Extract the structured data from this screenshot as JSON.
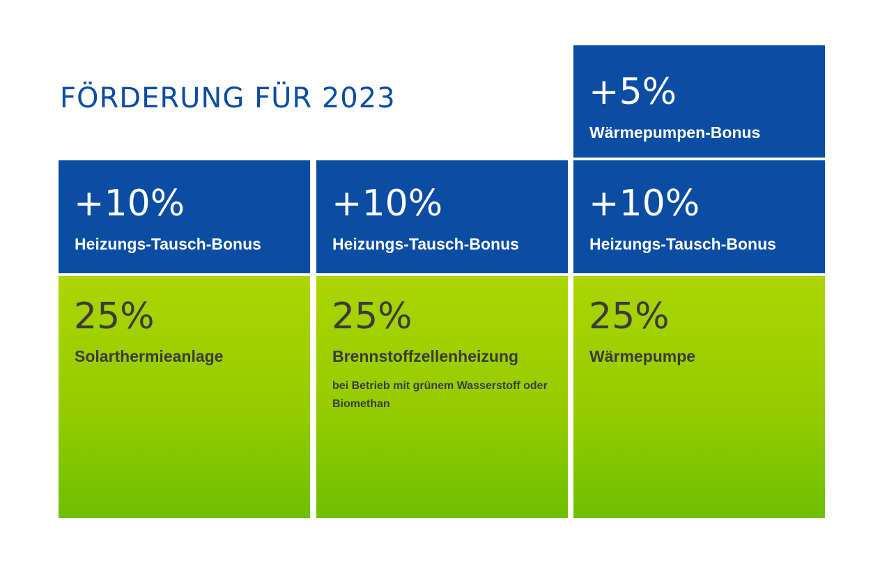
{
  "title": "FÖRDERUNG FÜR 2023",
  "colors": {
    "blue": "#0a4da2",
    "green_top": "#acd503",
    "green_bottom": "#6ebf00",
    "text_dark": "#3b3b3b",
    "background": "#ffffff"
  },
  "columns": [
    {
      "bonus": {
        "percent": "+10%",
        "label": "Heizungs-Tausch-Bonus"
      },
      "base": {
        "percent": "25%",
        "label": "Solarthermieanlage",
        "note": ""
      }
    },
    {
      "bonus": {
        "percent": "+10%",
        "label": "Heizungs-Tausch-Bonus"
      },
      "base": {
        "percent": "25%",
        "label": "Brennstoffzellenheizung",
        "note": "bei Betrieb mit grünem Wasserstoff oder Biomethan"
      }
    },
    {
      "extra_bonus": {
        "percent": "+5%",
        "label": "Wärmepumpen-Bonus"
      },
      "bonus": {
        "percent": "+10%",
        "label": "Heizungs-Tausch-Bonus"
      },
      "base": {
        "percent": "25%",
        "label": "Wärmepumpe",
        "note": ""
      }
    }
  ]
}
